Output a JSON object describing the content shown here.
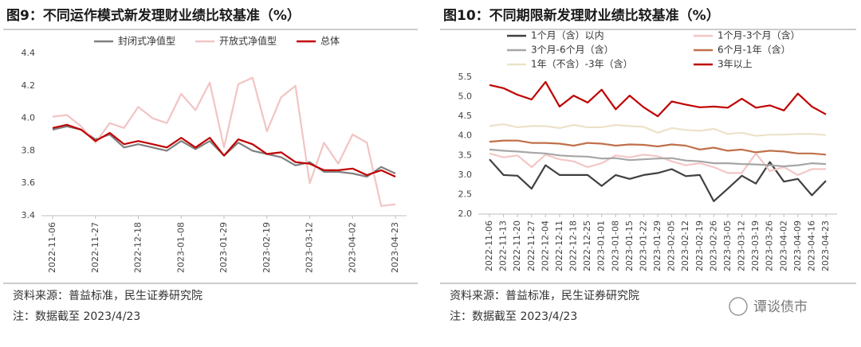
{
  "chart_data": [
    {
      "type": "line",
      "title": "图9：不同运作模式新发理财业绩比较基准（%）",
      "categories": [
        "2022-11-06",
        null,
        null,
        "2022-11-27",
        null,
        null,
        "2022-12-18",
        null,
        null,
        "2023-01-08",
        null,
        null,
        "2023-01-29",
        null,
        null,
        "2023-02-19",
        null,
        null,
        "2023-03-12",
        null,
        null,
        "2023-04-02",
        null,
        null,
        "2023-04-23"
      ],
      "series": [
        {
          "name": "封闭式净值型",
          "color": "#7f7f7f",
          "values": [
            3.93,
            3.95,
            3.93,
            3.87,
            3.9,
            3.82,
            3.84,
            3.82,
            3.8,
            3.86,
            3.81,
            3.86,
            3.77,
            3.85,
            3.8,
            3.78,
            3.76,
            3.71,
            3.73,
            3.67,
            3.67,
            3.66,
            3.64,
            3.7,
            3.66
          ]
        },
        {
          "name": "开放式净值型",
          "color": "#f2c4c4",
          "values": [
            4.01,
            4.02,
            3.95,
            3.85,
            3.97,
            3.94,
            4.07,
            4.0,
            3.97,
            4.15,
            4.05,
            4.22,
            3.82,
            4.21,
            4.25,
            3.92,
            4.13,
            4.2,
            3.6,
            3.85,
            3.72,
            3.9,
            3.85,
            3.46,
            3.47
          ]
        },
        {
          "name": "总体",
          "color": "#c00000",
          "values": [
            3.94,
            3.96,
            3.93,
            3.86,
            3.91,
            3.84,
            3.86,
            3.84,
            3.82,
            3.88,
            3.82,
            3.88,
            3.77,
            3.87,
            3.84,
            3.78,
            3.79,
            3.73,
            3.72,
            3.68,
            3.68,
            3.69,
            3.65,
            3.68,
            3.64
          ]
        }
      ],
      "ylim": [
        3.4,
        4.4
      ],
      "yticks": [
        3.4,
        3.6,
        3.8,
        {
          "value": 4,
          "label": "4.0"
        },
        4.2,
        4.4
      ],
      "grid": false,
      "source": "资料来源：普益标准，民生证券研究院",
      "note": "注：数据截至 2023/4/23"
    },
    {
      "type": "line",
      "title": "图10：不同期限新发理财业绩比较基准（%）",
      "categories": [
        "2022-11-06",
        "2022-11-13",
        "2022-11-20",
        "2022-11-27",
        "2022-12-04",
        "2022-12-11",
        "2022-12-18",
        "2022-12-25",
        "2023-01-01",
        "2023-01-08",
        "2023-01-15",
        "2023-01-22",
        "2023-01-29",
        "2023-02-05",
        "2023-02-12",
        "2023-02-19",
        "2023-02-26",
        "2023-03-05",
        "2023-03-12",
        "2023-03-19",
        "2023-03-26",
        "2023-04-02",
        "2023-04-09",
        "2023-04-16",
        "2023-04-23"
      ],
      "series": [
        {
          "name": "1个月（含）以内",
          "color": "#404040",
          "values": [
            3.4,
            3.0,
            2.98,
            2.65,
            3.25,
            3.0,
            3.0,
            3.0,
            2.72,
            3.0,
            2.9,
            3.0,
            3.05,
            3.15,
            2.97,
            3.0,
            2.33,
            2.65,
            2.98,
            2.78,
            3.33,
            2.83,
            2.9,
            2.48,
            2.85
          ]
        },
        {
          "name": "1个月-3个月（含）",
          "color": "#f4c6c6",
          "values": [
            3.55,
            3.45,
            3.5,
            3.2,
            3.52,
            3.4,
            3.35,
            3.2,
            3.3,
            3.5,
            3.45,
            3.52,
            3.48,
            3.35,
            3.25,
            3.3,
            3.2,
            3.05,
            3.05,
            3.55,
            3.1,
            3.2,
            3.0,
            3.15,
            3.15
          ]
        },
        {
          "name": "3个月-6个月（含）",
          "color": "#a6a6a6",
          "values": [
            3.65,
            3.62,
            3.6,
            3.57,
            3.55,
            3.5,
            3.48,
            3.47,
            3.42,
            3.43,
            3.38,
            3.4,
            3.42,
            3.43,
            3.37,
            3.35,
            3.3,
            3.3,
            3.28,
            3.27,
            3.25,
            3.22,
            3.25,
            3.3,
            3.28
          ]
        },
        {
          "name": "6个月-1年（含）",
          "color": "#c0704a",
          "values": [
            3.85,
            3.88,
            3.88,
            3.82,
            3.82,
            3.8,
            3.75,
            3.82,
            3.8,
            3.75,
            3.78,
            3.77,
            3.73,
            3.78,
            3.75,
            3.65,
            3.7,
            3.62,
            3.65,
            3.58,
            3.62,
            3.6,
            3.55,
            3.55,
            3.52
          ]
        },
        {
          "name": "1年（不含）-3年（含）",
          "color": "#ece2c8",
          "values": [
            4.25,
            4.3,
            4.22,
            4.25,
            4.25,
            4.2,
            4.28,
            4.22,
            4.22,
            4.28,
            4.25,
            4.23,
            4.08,
            4.2,
            4.15,
            4.13,
            4.18,
            4.05,
            4.08,
            4.0,
            4.03,
            4.03,
            4.05,
            4.05,
            4.02
          ]
        },
        {
          "name": "3年以上",
          "color": "#c00000",
          "values": [
            5.3,
            5.22,
            5.05,
            4.93,
            5.38,
            4.75,
            5.03,
            4.85,
            5.18,
            4.68,
            5.03,
            4.73,
            4.5,
            4.88,
            4.8,
            4.73,
            4.75,
            4.72,
            4.95,
            4.72,
            4.78,
            4.65,
            5.08,
            4.75,
            4.55
          ]
        }
      ],
      "ylim": [
        2.0,
        5.5
      ],
      "yticks": [
        {
          "value": 2,
          "label": "2.0"
        },
        2.5,
        {
          "value": 3,
          "label": "3.0"
        },
        3.5,
        {
          "value": 4,
          "label": "4.0"
        },
        4.5,
        {
          "value": 5,
          "label": "5.0"
        },
        5.5
      ],
      "grid": false,
      "source": "资料来源：普益标准，民生证券研究院",
      "note": "注：数据截至 2023/4/23"
    }
  ],
  "watermark": "谭谈债市"
}
